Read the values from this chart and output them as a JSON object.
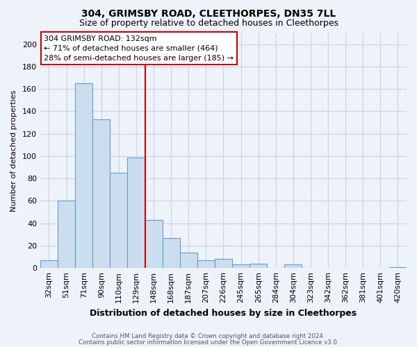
{
  "title1": "304, GRIMSBY ROAD, CLEETHORPES, DN35 7LL",
  "title2": "Size of property relative to detached houses in Cleethorpes",
  "xlabel": "Distribution of detached houses by size in Cleethorpes",
  "ylabel": "Number of detached properties",
  "bar_labels": [
    "32sqm",
    "51sqm",
    "71sqm",
    "90sqm",
    "110sqm",
    "129sqm",
    "148sqm",
    "168sqm",
    "187sqm",
    "207sqm",
    "226sqm",
    "245sqm",
    "265sqm",
    "284sqm",
    "304sqm",
    "323sqm",
    "342sqm",
    "362sqm",
    "381sqm",
    "401sqm",
    "420sqm"
  ],
  "bar_values": [
    7,
    60,
    165,
    133,
    85,
    99,
    43,
    27,
    14,
    7,
    8,
    3,
    4,
    0,
    3,
    0,
    0,
    0,
    0,
    0,
    1
  ],
  "bar_color": "#ccddf0",
  "bar_edge_color": "#6699cc",
  "ylim": [
    0,
    210
  ],
  "yticks": [
    0,
    20,
    40,
    60,
    80,
    100,
    120,
    140,
    160,
    180,
    200
  ],
  "vline_x": 5.5,
  "vline_color": "#cc0000",
  "annotation_title": "304 GRIMSBY ROAD: 132sqm",
  "annotation_line1": "← 71% of detached houses are smaller (464)",
  "annotation_line2": "28% of semi-detached houses are larger (185) →",
  "footer1": "Contains HM Land Registry data © Crown copyright and database right 2024.",
  "footer2": "Contains public sector information licensed under the Open Government Licence v3.0.",
  "bg_color": "#eef2f9",
  "grid_color": "#c8d4e8",
  "title1_fontsize": 10,
  "title2_fontsize": 9,
  "xlabel_fontsize": 9,
  "ylabel_fontsize": 8,
  "tick_fontsize": 8,
  "ann_fontsize": 8
}
